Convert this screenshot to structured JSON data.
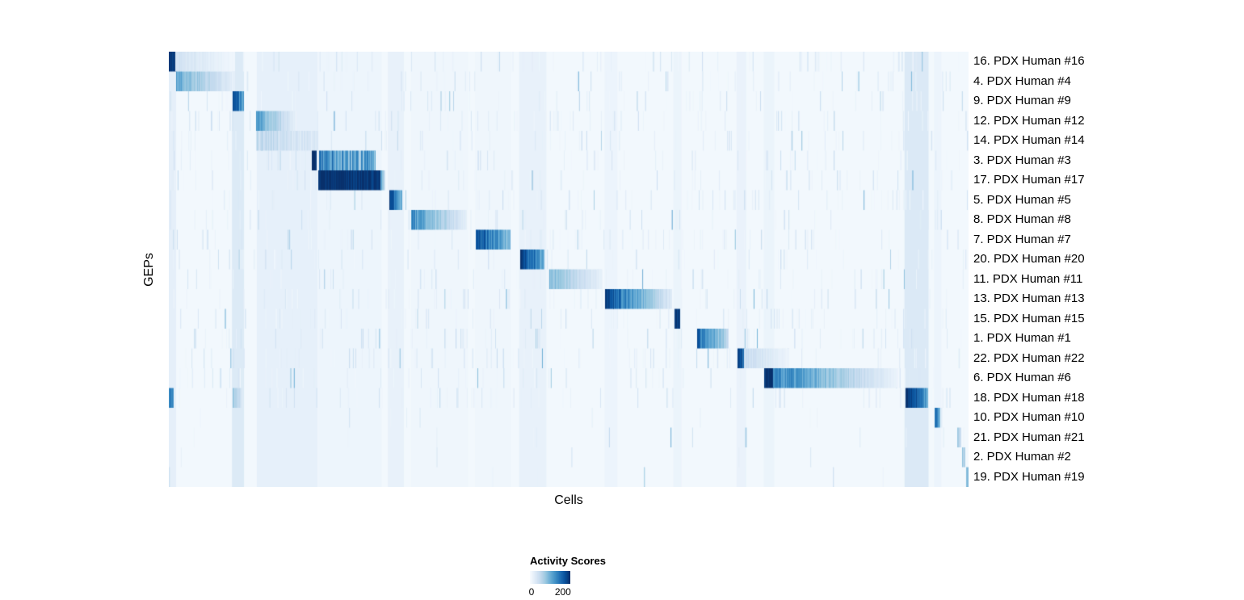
{
  "page": {
    "background": "#ffffff"
  },
  "chart_data": {
    "type": "heatmap",
    "title": "",
    "xlabel": "Cells",
    "ylabel": "GEPs",
    "legend": {
      "title": "Activity Scores",
      "ticks": [
        "0",
        "200"
      ],
      "tick_values": [
        0,
        200
      ]
    },
    "vmax": 240,
    "background_value": 6,
    "colormap": [
      "#f7fbff",
      "#deebf7",
      "#c6dbef",
      "#9ecae1",
      "#6baed6",
      "#4292c6",
      "#2171b5",
      "#08519c",
      "#08306b"
    ],
    "rows": [
      {
        "label": "16. PDX Human #16",
        "segments": [
          [
            0.0,
            0.009,
            230,
            230
          ],
          [
            0.009,
            0.082,
            45,
            8
          ]
        ]
      },
      {
        "label": "4. PDX Human #4",
        "segments": [
          [
            0.01,
            0.082,
            125,
            20
          ]
        ]
      },
      {
        "label": "9. PDX Human #9",
        "segments": [
          [
            0.08,
            0.0935,
            215,
            125
          ]
        ]
      },
      {
        "label": "12. PDX Human #12",
        "segments": [
          [
            0.11,
            0.16,
            135,
            15
          ]
        ]
      },
      {
        "label": "14. PDX Human #14",
        "segments": [
          [
            0.11,
            0.186,
            65,
            30,
            0.7
          ]
        ]
      },
      {
        "label": "3. PDX Human #3",
        "segments": [
          [
            0.1795,
            0.1845,
            240,
            240
          ],
          [
            0.188,
            0.258,
            150,
            115,
            0.8
          ]
        ]
      },
      {
        "label": "17. PDX Human #17",
        "segments": [
          [
            0.187,
            0.265,
            240,
            230
          ],
          [
            0.265,
            0.27,
            120,
            50
          ]
        ]
      },
      {
        "label": "5. PDX Human #5",
        "segments": [
          [
            0.276,
            0.291,
            225,
            115
          ]
        ]
      },
      {
        "label": "8. PDX Human #8",
        "segments": [
          [
            0.304,
            0.372,
            150,
            22
          ]
        ]
      },
      {
        "label": "7. PDX Human #7",
        "segments": [
          [
            0.384,
            0.427,
            205,
            105
          ]
        ]
      },
      {
        "label": "20. PDX Human #20",
        "segments": [
          [
            0.44,
            0.469,
            230,
            125
          ]
        ]
      },
      {
        "label": "11. PDX Human #11",
        "segments": [
          [
            0.476,
            0.542,
            105,
            18
          ]
        ]
      },
      {
        "label": "13. PDX Human #13",
        "segments": [
          [
            0.546,
            0.556,
            230,
            195
          ],
          [
            0.556,
            0.629,
            185,
            30
          ]
        ]
      },
      {
        "label": "15. PDX Human #15",
        "segments": [
          [
            0.633,
            0.639,
            235,
            235
          ]
        ]
      },
      {
        "label": "1. PDX Human #1",
        "segments": [
          [
            0.661,
            0.699,
            185,
            65
          ]
        ]
      },
      {
        "label": "22. PDX Human #22",
        "segments": [
          [
            0.7115,
            0.72,
            225,
            175
          ],
          [
            0.72,
            0.775,
            55,
            12
          ]
        ]
      },
      {
        "label": "6. PDX Human #6",
        "segments": [
          [
            0.745,
            0.756,
            240,
            240
          ],
          [
            0.756,
            0.912,
            165,
            12
          ]
        ]
      },
      {
        "label": "18. PDX Human #18",
        "segments": [
          [
            0.0,
            0.006,
            155,
            155
          ],
          [
            0.08,
            0.09,
            85,
            55
          ],
          [
            0.922,
            0.949,
            240,
            135
          ]
        ]
      },
      {
        "label": "10. PDX Human #10",
        "segments": [
          [
            0.958,
            0.9645,
            165,
            115
          ]
        ]
      },
      {
        "label": "21. PDX Human #21",
        "segments": [
          [
            0.986,
            0.99,
            75,
            55
          ]
        ]
      },
      {
        "label": "2. PDX Human #2",
        "segments": [
          [
            0.992,
            0.9955,
            85,
            65
          ]
        ]
      },
      {
        "label": "19. PDX Human #19",
        "segments": [
          [
            0.997,
            1.0,
            105,
            85
          ]
        ]
      }
    ],
    "column_bands": [
      [
        0.0,
        0.009,
        22
      ],
      [
        0.079,
        0.094,
        32
      ],
      [
        0.11,
        0.186,
        20
      ],
      [
        0.187,
        0.266,
        12
      ],
      [
        0.274,
        0.294,
        18
      ],
      [
        0.303,
        0.374,
        10
      ],
      [
        0.383,
        0.428,
        10
      ],
      [
        0.438,
        0.472,
        18
      ],
      [
        0.545,
        0.561,
        13
      ],
      [
        0.631,
        0.641,
        14
      ],
      [
        0.71,
        0.722,
        16
      ],
      [
        0.744,
        0.757,
        14
      ],
      [
        0.92,
        0.95,
        34
      ],
      [
        0.957,
        0.966,
        13
      ]
    ],
    "texture": {
      "seed": 7,
      "streaks": 1600
    }
  }
}
